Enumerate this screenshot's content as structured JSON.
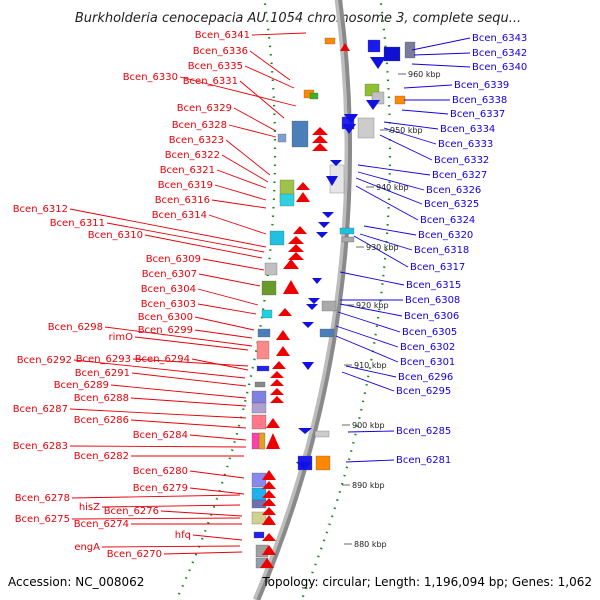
{
  "title": "Burkholderia cenocepacia AU 1054 chromosome 3, complete sequ...",
  "footer": {
    "accession": "Accession: NC_008062",
    "summary": "Topology: circular; Length: 1,196,094 bp; Genes: 1,062"
  },
  "colors": {
    "left_labels": "#e8000a",
    "right_labels": "#1500e0",
    "backbone": "#8a8a8a",
    "dots": "#1a8a1a",
    "forward_arrows": "#ee0000",
    "reverse_arrows": "#1010e0"
  },
  "kbp_ticks": [
    "960 kbp",
    "950 kbp",
    "940 kbp",
    "930 kbp",
    "920 kbp",
    "910 kbp",
    "900 kbp",
    "890 kbp",
    "880 kbp"
  ],
  "left_labels": [
    "Bcen_6341",
    "Bcen_6336",
    "Bcen_6335",
    "Bcen_6330",
    "Bcen_6331",
    "Bcen_6329",
    "Bcen_6328",
    "Bcen_6323",
    "Bcen_6322",
    "Bcen_6321",
    "Bcen_6319",
    "Bcen_6316",
    "Bcen_6312",
    "Bcen_6314",
    "Bcen_6311",
    "Bcen_6310",
    "Bcen_6309",
    "Bcen_6307",
    "Bcen_6304",
    "Bcen_6303",
    "Bcen_6300",
    "Bcen_6298",
    "Bcen_6299",
    "rimO",
    "Bcen_6292",
    "Bcen_6293",
    "Bcen_6294",
    "Bcen_6291",
    "Bcen_6289",
    "Bcen_6288",
    "Bcen_6287",
    "Bcen_6286",
    "Bcen_6284",
    "Bcen_6283",
    "Bcen_6282",
    "Bcen_6280",
    "Bcen_6279",
    "Bcen_6278",
    "hisZ",
    "Bcen_6276",
    "Bcen_6275",
    "Bcen_6274",
    "hfq",
    "engA",
    "Bcen_6270"
  ],
  "right_labels": [
    "Bcen_6343",
    "Bcen_6342",
    "Bcen_6340",
    "Bcen_6339",
    "Bcen_6338",
    "Bcen_6337",
    "Bcen_6334",
    "Bcen_6333",
    "Bcen_6332",
    "Bcen_6327",
    "Bcen_6326",
    "Bcen_6325",
    "Bcen_6324",
    "Bcen_6320",
    "Bcen_6318",
    "Bcen_6317",
    "Bcen_6315",
    "Bcen_6308",
    "Bcen_6306",
    "Bcen_6305",
    "Bcen_6302",
    "Bcen_6301",
    "Bcen_6296",
    "Bcen_6295",
    "Bcen_6285",
    "Bcen_6281"
  ]
}
